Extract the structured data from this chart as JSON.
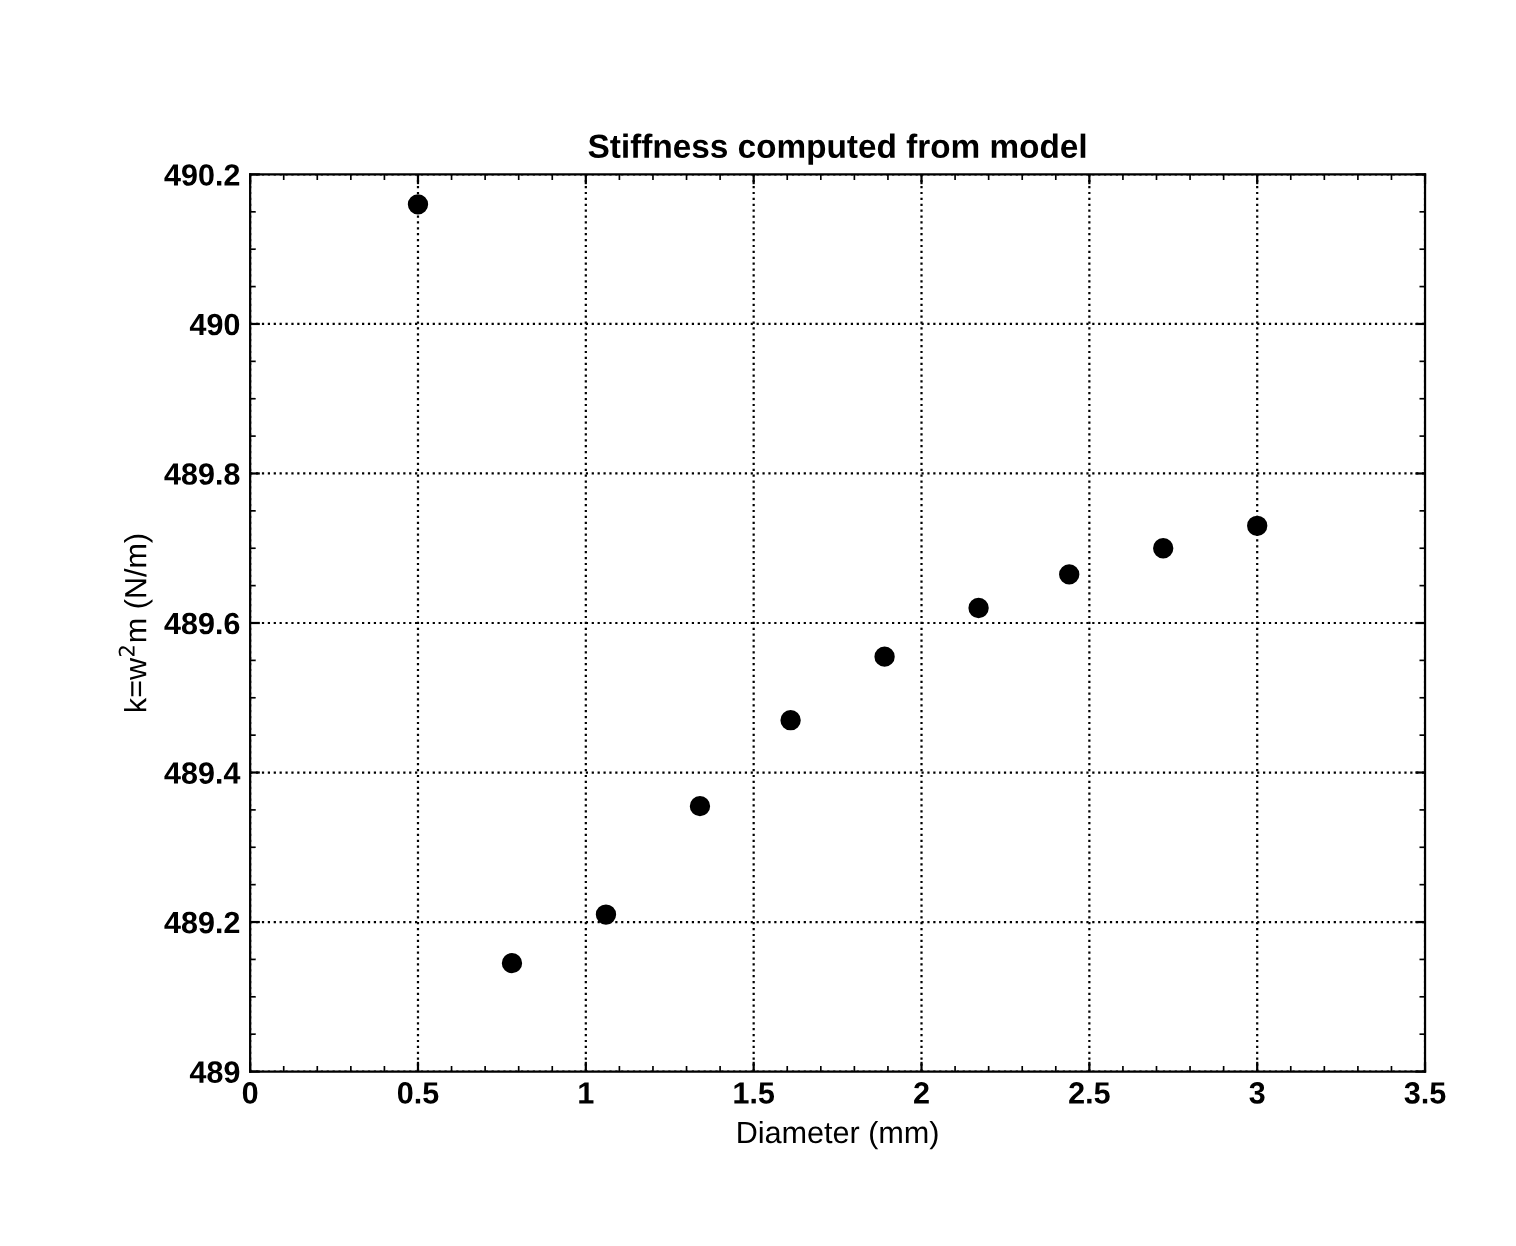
{
  "chart_data": {
    "type": "scatter",
    "title": "Stiffness computed from model",
    "xlabel": "Diameter (mm)",
    "ylabel": "k=w$^{2}$m (N/m)",
    "x": [
      0.5,
      0.78,
      1.06,
      1.34,
      1.61,
      1.89,
      2.17,
      2.44,
      2.72,
      3.0
    ],
    "series": [
      {
        "color": "#000000",
        "values": [
          490.16,
          489.145,
          489.21,
          489.355,
          489.47,
          489.555,
          489.62,
          489.665,
          489.7,
          489.73
        ]
      }
    ],
    "xlim": [
      0,
      3.5
    ],
    "xticks": [
      0,
      0.5,
      1,
      1.5,
      2,
      2.5,
      3,
      3.5
    ],
    "ylim": [
      489,
      490.2
    ],
    "yticks": [
      489,
      489.2,
      489.4,
      489.6,
      489.8,
      490,
      490.2
    ],
    "grid": true,
    "marker": "circle",
    "legend": false
  }
}
